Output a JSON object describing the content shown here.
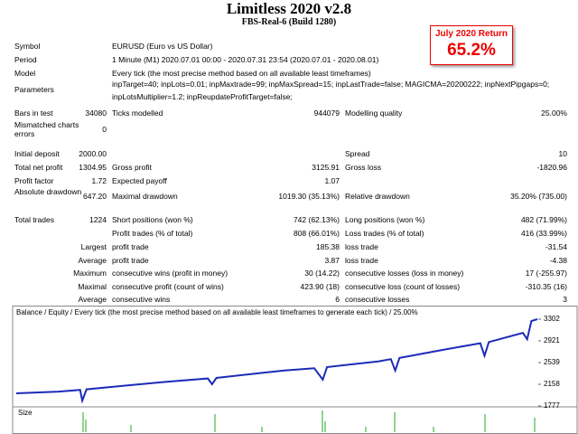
{
  "header": {
    "title": "Limitless 2020 v2.8",
    "subtitle": "FBS-Real-6 (Build 1280)"
  },
  "badge": {
    "label": "July 2020 Return",
    "value": "65.2%"
  },
  "info": [
    {
      "label": "Symbol",
      "lines": [
        "EURUSD (Euro vs US Dollar)"
      ]
    },
    {
      "label": "Period",
      "lines": [
        "1 Minute (M1) 2020.07.01 00:00 - 2020.07.31 23:54 (2020.07.01 - 2020.08.01)"
      ]
    },
    {
      "label": "Model",
      "lines": [
        "Every tick (the most precise method based on all available least timeframes)"
      ]
    },
    {
      "label": "Parameters",
      "lines": [
        "inpTarget=40; inpLots=0.01; inpMaxtrade=99; inpMaxSpread=15; inpLastTrade=false; MAGICMA=20200222; inpNextPipgaps=0;",
        "inpLotsMultiplier=1.2; inpReupdateProfitTarget=false;"
      ]
    }
  ],
  "stats": [
    [
      "Bars in test",
      "34080",
      "Ticks modelled",
      "944079",
      "Modelling quality",
      "25.00%"
    ],
    [
      "Mismatched charts errors",
      "0",
      null,
      null,
      null,
      null
    ],
    [
      "Initial deposit",
      "2000.00",
      null,
      null,
      "Spread",
      "10"
    ],
    [
      "Total net profit",
      "1304.95",
      "Gross profit",
      "3125.91",
      "Gross loss",
      "-1820.96"
    ],
    [
      "Profit factor",
      "1.72",
      "Expected payoff",
      "1.07",
      null,
      null
    ],
    [
      "Absolute drawdown",
      "647.20",
      "Maximal drawdown",
      "1019.30 (35.13%)",
      "Relative drawdown",
      "35.20% (735.00)"
    ],
    [
      "Total trades",
      "1224",
      "Short positions (won %)",
      "742 (62.13%)",
      "Long positions (won %)",
      "482 (71.99%)"
    ],
    [
      null,
      null,
      "Profit trades (% of total)",
      "808 (66.01%)",
      "Loss trades (% of total)",
      "416 (33.99%)"
    ],
    [
      null,
      "Largest",
      "profit trade",
      "185.38",
      "loss trade",
      "-31.54"
    ],
    [
      null,
      "Average",
      "profit trade",
      "3.87",
      "loss trade",
      "-4.38"
    ],
    [
      null,
      "Maximum",
      "consecutive wins (profit in money)",
      "30 (14.22)",
      "consecutive losses (loss in money)",
      "17 (-255.97)"
    ],
    [
      null,
      "Maximal",
      "consecutive profit (count of wins)",
      "423.90 (18)",
      "consecutive loss (count of losses)",
      "-310.35 (16)"
    ],
    [
      null,
      "Average",
      "consecutive wins",
      "6",
      "consecutive losses",
      "3"
    ]
  ],
  "chart": {
    "type": "line",
    "caption": "Balance / Equity / Every tick (the most precise method based on all available least timeframes to generate each tick) / 25.00%",
    "color": "#1c2bb8",
    "x": [
      0,
      100,
      150,
      155,
      165,
      250,
      350,
      450,
      460,
      470,
      580,
      630,
      700,
      720,
      730,
      850,
      880,
      890,
      900,
      1000,
      1090,
      1100,
      1110,
      1190,
      1200,
      1210,
      1224
    ],
    "balance": [
      2000,
      2030,
      2060,
      1870,
      2070,
      2130,
      2200,
      2260,
      2160,
      2270,
      2360,
      2400,
      2440,
      2240,
      2460,
      2560,
      2600,
      2400,
      2620,
      2760,
      2880,
      2660,
      2900,
      3060,
      2950,
      3270,
      3302
    ],
    "xlim": [
      0,
      1224
    ],
    "ylim": [
      1777,
      3461
    ],
    "yticks": [
      3302,
      2921,
      2539,
      2158,
      1777
    ],
    "size_label": "Size"
  }
}
